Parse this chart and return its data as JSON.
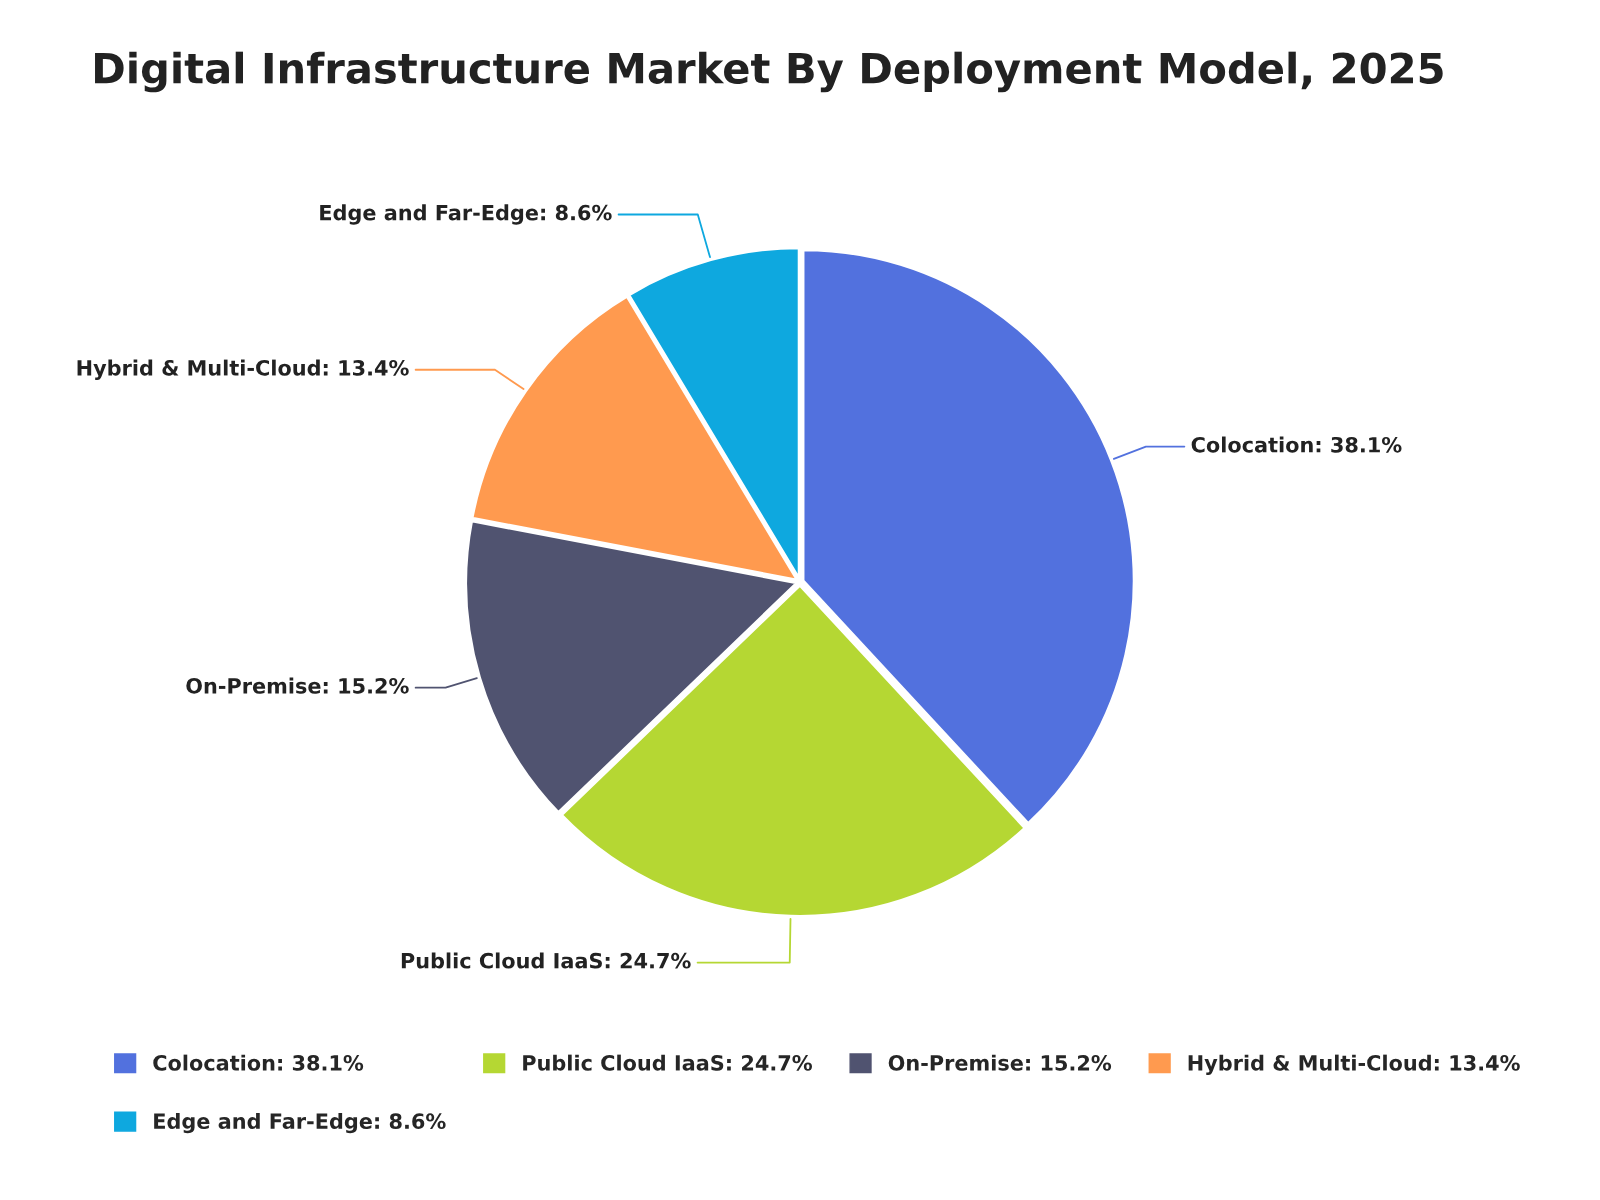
{
  "chart_data": {
    "type": "pie",
    "title": "Digital Infrastructure Market By Deployment Model, 2025",
    "categories": [
      "Colocation: 38.1%",
      "Public Cloud IaaS: 24.7%",
      "On-Premise: 15.2%",
      "Hybrid & Multi-Cloud: 13.4%",
      "Edge and Far-Edge: 8.6%"
    ],
    "values": [
      38.1,
      24.7,
      15.2,
      13.4,
      8.6
    ],
    "colors": [
      "#5271de",
      "#b5d733",
      "#505370",
      "#ff9a4f",
      "#0ea8df"
    ],
    "legend": "bottom"
  }
}
